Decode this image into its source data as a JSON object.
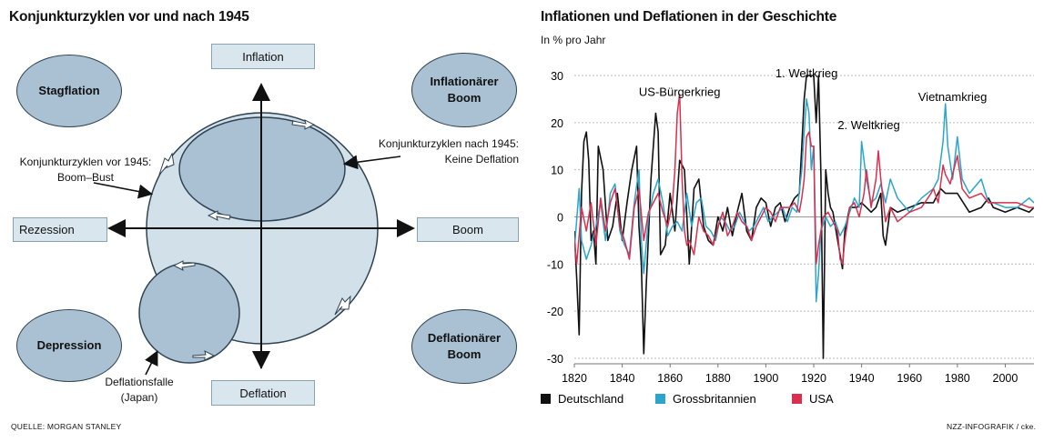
{
  "diagram": {
    "title": "Konjunkturzyklen vor und nach 1945",
    "axis_labels": {
      "top": "Inflation",
      "bottom": "Deflation",
      "left": "Rezession",
      "right": "Boom"
    },
    "corner_ovals": {
      "top_left": "Stagflation",
      "top_right": "Inflationärer Boom",
      "bottom_left": "Depression",
      "bottom_right": "Deflationärer Boom"
    },
    "annotations": {
      "before_1945": "Konjunkturzyklen vor 1945: Boom–Bust",
      "after_1945": "Konjunkturzyklen nach 1945: Keine Deflation",
      "deflation_trap": "Deflationsfalle (Japan)"
    },
    "source": "QUELLE: MORGAN STANLEY",
    "colors": {
      "big_circle": "#d2e0ea",
      "oval_fill": "#a9c1d3",
      "box_fill": "#d9e6ee"
    }
  },
  "chart_data": {
    "type": "line",
    "title": "Inflationen und Deflationen in der Geschichte",
    "ylabel": "In % pro Jahr",
    "xlim": [
      1820,
      2012
    ],
    "ylim": [
      -30,
      30
    ],
    "x_ticks": [
      1820,
      1840,
      1860,
      1880,
      1900,
      1920,
      1940,
      1960,
      1980,
      2000
    ],
    "y_ticks": [
      30,
      20,
      10,
      0,
      -10,
      -20,
      -30
    ],
    "annotations": [
      {
        "text": "US-Bürgerkrieg",
        "x": 1864,
        "y": 26
      },
      {
        "text": "1. Weltkrieg",
        "x": 1917,
        "y": 30
      },
      {
        "text": "2. Weltkrieg",
        "x": 1943,
        "y": 19
      },
      {
        "text": "Vietnamkrieg",
        "x": 1978,
        "y": 25
      }
    ],
    "series": [
      {
        "name": "Deutschland",
        "color": "#111111",
        "x": [
          1820,
          1821,
          1822,
          1823,
          1824,
          1825,
          1826,
          1827,
          1828,
          1829,
          1830,
          1832,
          1834,
          1836,
          1838,
          1840,
          1842,
          1844,
          1846,
          1847,
          1848,
          1849,
          1850,
          1852,
          1854,
          1855,
          1856,
          1858,
          1860,
          1862,
          1864,
          1866,
          1868,
          1870,
          1872,
          1874,
          1876,
          1878,
          1880,
          1882,
          1884,
          1886,
          1888,
          1890,
          1892,
          1894,
          1896,
          1898,
          1900,
          1902,
          1904,
          1906,
          1908,
          1910,
          1912,
          1914,
          1915,
          1916,
          1917,
          1918,
          1919,
          1920,
          1921,
          1922,
          1923,
          1924,
          1925,
          1926,
          1927,
          1928,
          1930,
          1931,
          1932,
          1933,
          1935,
          1938,
          1940,
          1942,
          1944,
          1946,
          1948,
          1949,
          1950,
          1952,
          1955,
          1960,
          1965,
          1970,
          1973,
          1975,
          1980,
          1985,
          1990,
          1993,
          1995,
          2000,
          2005,
          2010,
          2012
        ],
        "values": [
          -3,
          -13,
          -25,
          5,
          16,
          18,
          12,
          -5,
          -3,
          -10,
          15,
          10,
          -5,
          -2,
          5,
          -5,
          3,
          10,
          15,
          -2,
          -10,
          -29,
          -15,
          8,
          22,
          18,
          -8,
          -6,
          5,
          -3,
          12,
          10,
          -10,
          6,
          8,
          -2,
          -5,
          -6,
          0,
          -3,
          2,
          -4,
          1,
          5,
          -3,
          -5,
          2,
          4,
          3,
          -2,
          2,
          3,
          -1,
          2,
          4,
          5,
          15,
          25,
          30,
          30,
          30,
          30,
          20,
          30,
          9,
          -30,
          10,
          5,
          2,
          1,
          -5,
          -8,
          -11,
          -3,
          2,
          2,
          3,
          2,
          1,
          2,
          5,
          -4,
          -6,
          2,
          1,
          2,
          3,
          3,
          6,
          5,
          5,
          1,
          2,
          4,
          2,
          1,
          2,
          1,
          2
        ]
      },
      {
        "name": "Grossbritannien",
        "color": "#2ba5cb",
        "x": [
          1820,
          1822,
          1823,
          1825,
          1827,
          1829,
          1831,
          1833,
          1835,
          1837,
          1839,
          1841,
          1843,
          1845,
          1847,
          1848,
          1849,
          1851,
          1853,
          1855,
          1857,
          1859,
          1861,
          1863,
          1865,
          1867,
          1869,
          1871,
          1873,
          1875,
          1877,
          1879,
          1881,
          1883,
          1885,
          1887,
          1889,
          1891,
          1893,
          1895,
          1897,
          1899,
          1901,
          1903,
          1905,
          1907,
          1909,
          1911,
          1913,
          1915,
          1916,
          1917,
          1918,
          1919,
          1920,
          1921,
          1922,
          1923,
          1925,
          1927,
          1929,
          1931,
          1933,
          1935,
          1937,
          1939,
          1940,
          1942,
          1944,
          1946,
          1948,
          1950,
          1952,
          1955,
          1960,
          1965,
          1970,
          1972,
          1974,
          1975,
          1976,
          1978,
          1980,
          1982,
          1985,
          1990,
          1993,
          1995,
          2000,
          2005,
          2010,
          2012
        ],
        "values": [
          -7,
          6,
          -5,
          -9,
          -6,
          -2,
          3,
          -5,
          5,
          7,
          -3,
          -6,
          -8,
          3,
          10,
          -5,
          -12,
          0,
          5,
          8,
          3,
          -4,
          -2,
          -1,
          -3,
          5,
          -2,
          3,
          4,
          -2,
          -3,
          -5,
          0,
          -1,
          -3,
          -2,
          1,
          -1,
          -3,
          -2,
          0,
          2,
          -1,
          0,
          1,
          2,
          -1,
          2,
          1,
          10,
          18,
          25,
          22,
          10,
          15,
          -18,
          -12,
          -3,
          0,
          -2,
          -1,
          -4,
          -2,
          1,
          4,
          2,
          16,
          8,
          3,
          4,
          7,
          3,
          8,
          4,
          1,
          4,
          6,
          8,
          16,
          24,
          15,
          8,
          17,
          8,
          5,
          8,
          3,
          3,
          2,
          2,
          4,
          3
        ]
      },
      {
        "name": "USA",
        "color": "#d8304e",
        "x": [
          1820,
          1821,
          1823,
          1825,
          1827,
          1829,
          1831,
          1833,
          1835,
          1837,
          1839,
          1841,
          1843,
          1845,
          1847,
          1849,
          1851,
          1853,
          1855,
          1857,
          1859,
          1861,
          1862,
          1863,
          1864,
          1865,
          1866,
          1867,
          1868,
          1870,
          1872,
          1874,
          1876,
          1878,
          1880,
          1882,
          1884,
          1886,
          1888,
          1890,
          1892,
          1894,
          1896,
          1898,
          1900,
          1902,
          1904,
          1906,
          1908,
          1910,
          1912,
          1914,
          1915,
          1916,
          1917,
          1918,
          1919,
          1920,
          1921,
          1922,
          1924,
          1926,
          1928,
          1930,
          1931,
          1932,
          1933,
          1935,
          1937,
          1939,
          1941,
          1942,
          1944,
          1946,
          1947,
          1948,
          1950,
          1952,
          1955,
          1960,
          1965,
          1969,
          1970,
          1972,
          1974,
          1975,
          1977,
          1979,
          1980,
          1982,
          1985,
          1990,
          1993,
          1995,
          2000,
          2005,
          2010,
          2012
        ],
        "values": [
          -5,
          -10,
          2,
          -3,
          3,
          -6,
          4,
          -3,
          3,
          6,
          -2,
          -5,
          -9,
          2,
          6,
          -5,
          1,
          3,
          5,
          1,
          -2,
          3,
          10,
          22,
          26,
          8,
          -3,
          -6,
          -5,
          -8,
          0,
          -3,
          -4,
          -6,
          -2,
          1,
          -4,
          -2,
          1,
          -1,
          -2,
          -5,
          -2,
          0,
          2,
          1,
          -1,
          2,
          2,
          2,
          3,
          1,
          4,
          8,
          17,
          18,
          15,
          15,
          -10,
          -6,
          0,
          1,
          -1,
          -3,
          -9,
          -10,
          -5,
          2,
          3,
          0,
          5,
          10,
          2,
          8,
          14,
          8,
          -1,
          2,
          -1,
          1,
          2,
          5,
          6,
          3,
          11,
          9,
          7,
          11,
          13,
          6,
          4,
          5,
          3,
          3,
          3,
          3,
          2,
          2
        ]
      }
    ],
    "legend": [
      "Deutschland",
      "Grossbritannien",
      "USA"
    ],
    "legend_placement": "bottom-left",
    "grid": {
      "horizontal": true,
      "dashed": true
    },
    "credit": "NZZ-INFOGRAFIK / cke."
  }
}
